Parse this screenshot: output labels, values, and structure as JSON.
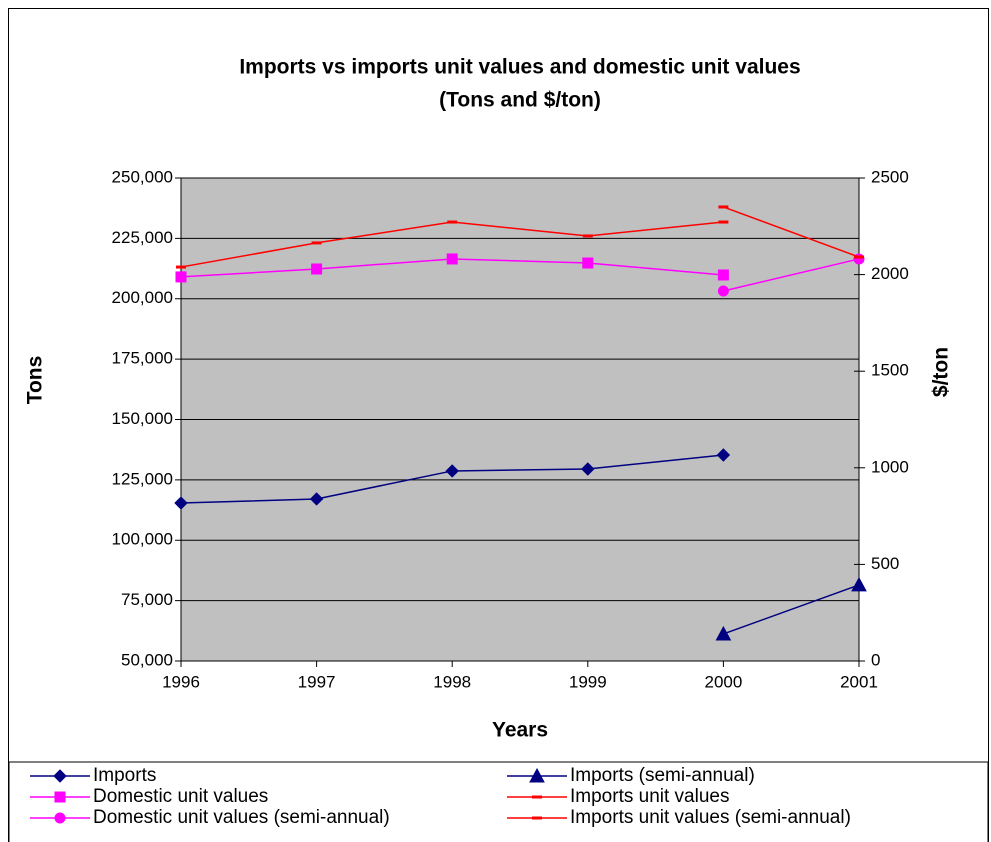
{
  "chart_data": {
    "type": "line",
    "title": "Imports vs imports unit values and domestic unit values",
    "subtitle": "(Tons and $/ton)",
    "x_label": "Years",
    "y_label": "Tons",
    "y2_label": "$/ton",
    "xlim": [
      1996,
      2001
    ],
    "xticks": [
      1996,
      1997,
      1998,
      1999,
      2000,
      2001
    ],
    "ylim": [
      50000,
      250000
    ],
    "yticks": [
      {
        "value": 50000,
        "label": "50,000"
      },
      {
        "value": 75000,
        "label": "75,000"
      },
      {
        "value": 100000,
        "label": "100,000"
      },
      {
        "value": 125000,
        "label": "125,000"
      },
      {
        "value": 150000,
        "label": "150,000"
      },
      {
        "value": 175000,
        "label": "175,000"
      },
      {
        "value": 200000,
        "label": "200,000"
      },
      {
        "value": 225000,
        "label": "225,000"
      },
      {
        "value": 250000,
        "label": "250,000"
      }
    ],
    "y2lim": [
      0,
      2500
    ],
    "y2ticks": [
      0,
      500,
      1000,
      1500,
      2000,
      2500
    ],
    "grid": true,
    "plot_background": "#c0c0c0",
    "legend": "bottom",
    "series": [
      {
        "name": "Imports",
        "color": "#000080",
        "marker": "diamond",
        "axis": "y",
        "x": [
          1996,
          1997,
          1998,
          1999,
          2000
        ],
        "values": [
          115400,
          117100,
          128700,
          129500,
          135300
        ]
      },
      {
        "name": "Imports (semi-annual)",
        "color": "#000080",
        "marker": "triangle",
        "axis": "y",
        "x": [
          2000,
          2001
        ],
        "values": [
          61200,
          81500
        ]
      },
      {
        "name": "Domestic unit values",
        "color": "#ff00ff",
        "marker": "square",
        "axis": "y2",
        "x": [
          1996,
          1997,
          1998,
          1999,
          2000
        ],
        "values": [
          1988,
          2029,
          2081,
          2060,
          1998
        ]
      },
      {
        "name": "Imports unit values",
        "color": "#ff0000",
        "marker": "dash",
        "axis": "y2",
        "x": [
          1996,
          1997,
          1998,
          1999,
          2000
        ],
        "values": [
          2039,
          2164,
          2272,
          2200,
          2272
        ]
      },
      {
        "name": "Domestic unit values (semi-annual)",
        "color": "#ff00ff",
        "marker": "circle",
        "axis": "y2",
        "x": [
          2000,
          2001
        ],
        "values": [
          1915,
          2081
        ]
      },
      {
        "name": "Imports unit values (semi-annual)",
        "color": "#ff0000",
        "marker": "dash",
        "axis": "y2",
        "x": [
          2000,
          2001
        ],
        "values": [
          2350,
          2091
        ]
      }
    ]
  }
}
